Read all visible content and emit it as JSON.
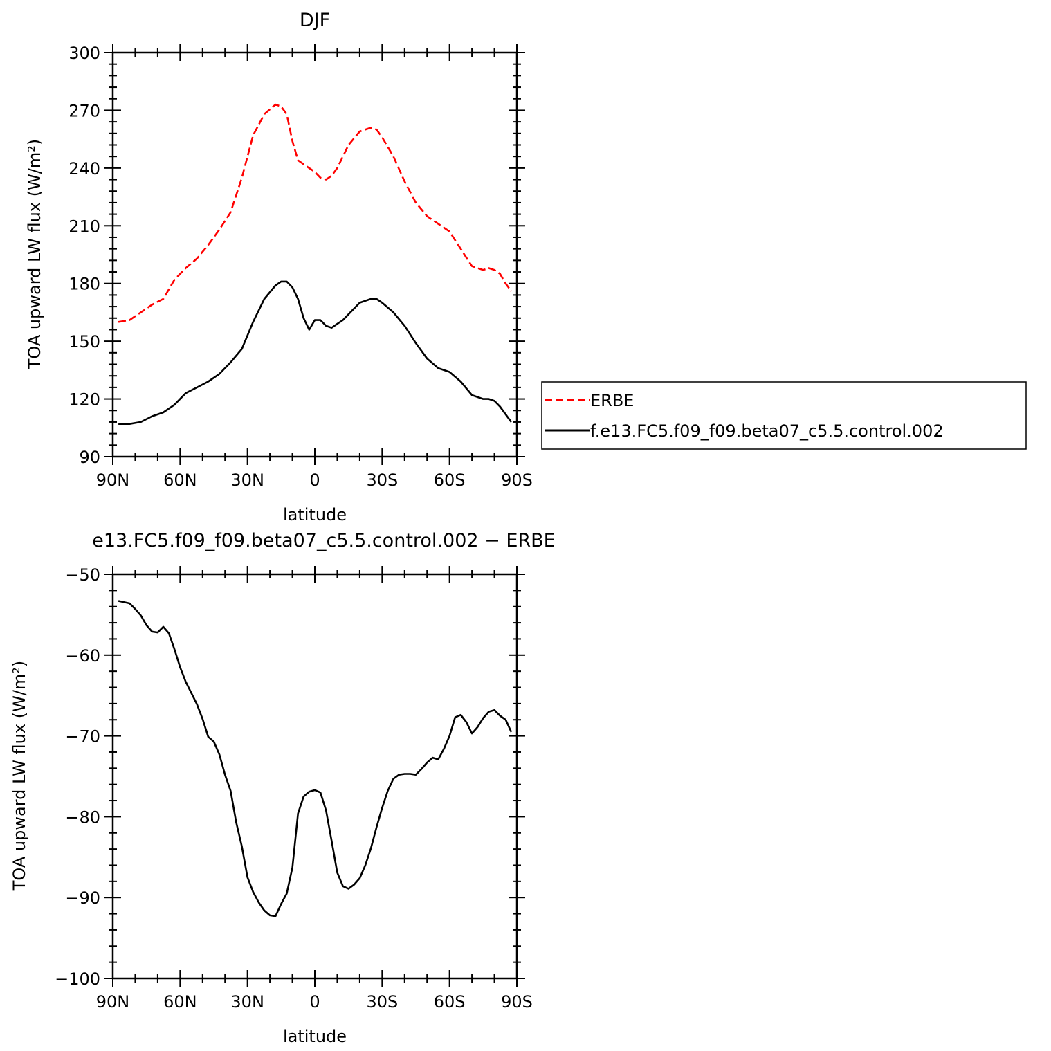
{
  "chart_data": [
    {
      "type": "line",
      "title": "DJF",
      "xlabel": "latitude",
      "ylabel": "TOA upward LW flux (W/m²)",
      "xlim": [
        90,
        -90
      ],
      "ylim": [
        90,
        300
      ],
      "x_ticks": [
        {
          "value": 90,
          "label": "90N"
        },
        {
          "value": 60,
          "label": "60N"
        },
        {
          "value": 30,
          "label": "30N"
        },
        {
          "value": 0,
          "label": "0"
        },
        {
          "value": -30,
          "label": "30S"
        },
        {
          "value": -60,
          "label": "60S"
        },
        {
          "value": -90,
          "label": "90S"
        }
      ],
      "y_ticks": [
        {
          "value": 300,
          "label": "300"
        },
        {
          "value": 270,
          "label": "270"
        },
        {
          "value": 240,
          "label": "240"
        },
        {
          "value": 210,
          "label": "210"
        },
        {
          "value": 180,
          "label": "180"
        },
        {
          "value": 150,
          "label": "150"
        },
        {
          "value": 120,
          "label": "120"
        },
        {
          "value": 90,
          "label": "90"
        }
      ],
      "legend": {
        "placement": "right",
        "entries": [
          "ERBE",
          "f.e13.FC5.f09_f09.beta07_c5.5.control.002"
        ]
      },
      "series": [
        {
          "name": "ERBE",
          "color": "#ff0000",
          "style": "dashed",
          "x": [
            87.5,
            82.5,
            77.5,
            72.5,
            67.5,
            62.5,
            57.5,
            52.5,
            47.5,
            42.5,
            37.5,
            32.5,
            27.5,
            22.5,
            17.5,
            15,
            12.5,
            10,
            7.5,
            5,
            2.5,
            0,
            -2.5,
            -5,
            -7.5,
            -10,
            -12.5,
            -15,
            -20,
            -25,
            -27.5,
            -30,
            -35,
            -40,
            -45,
            -50,
            -55,
            -60,
            -65,
            -70,
            -75,
            -77.5,
            -80,
            -82.5,
            -85,
            -87.5
          ],
          "y": [
            160,
            161,
            165,
            169,
            172,
            182,
            188,
            193,
            200,
            208,
            217,
            235,
            257,
            268,
            273,
            272,
            268,
            254,
            244,
            242,
            240,
            238,
            235,
            234,
            236,
            240,
            246,
            252,
            259,
            261,
            260,
            256,
            246,
            233,
            222,
            215,
            211,
            207,
            198,
            189,
            187,
            188,
            187,
            185,
            180,
            176
          ],
          "values_are_estimates": true
        },
        {
          "name": "f.e13.FC5.f09_f09.beta07_c5.5.control.002",
          "color": "#000000",
          "style": "solid",
          "x": [
            87.5,
            82.5,
            77.5,
            72.5,
            67.5,
            62.5,
            57.5,
            52.5,
            47.5,
            42.5,
            37.5,
            32.5,
            27.5,
            22.5,
            17.5,
            15,
            12.5,
            10,
            7.5,
            5,
            2.5,
            0,
            -2.5,
            -5,
            -7.5,
            -10,
            -12.5,
            -15,
            -20,
            -25,
            -27.5,
            -30,
            -35,
            -40,
            -45,
            -50,
            -55,
            -60,
            -65,
            -70,
            -75,
            -77.5,
            -80,
            -82.5,
            -85,
            -87.5
          ],
          "y": [
            107,
            107,
            108,
            111,
            113,
            117,
            123,
            126,
            129,
            133,
            139,
            146,
            160,
            172,
            179,
            181,
            181,
            178,
            172,
            162,
            156,
            161,
            161,
            158,
            157,
            159,
            161,
            164,
            170,
            172,
            172,
            170,
            165,
            158,
            149,
            141,
            136,
            134,
            129,
            122,
            120,
            120,
            119,
            116,
            112,
            108
          ],
          "values_are_estimates": true
        }
      ]
    },
    {
      "type": "line",
      "title": "e13.FC5.f09_f09.beta07_c5.5.control.002 − ERBE",
      "xlabel": "latitude",
      "ylabel": "TOA upward LW flux (W/m²)",
      "xlim": [
        90,
        -90
      ],
      "ylim": [
        -100,
        -50
      ],
      "x_ticks": [
        {
          "value": 90,
          "label": "90N"
        },
        {
          "value": 60,
          "label": "60N"
        },
        {
          "value": 30,
          "label": "30N"
        },
        {
          "value": 0,
          "label": "0"
        },
        {
          "value": -30,
          "label": "30S"
        },
        {
          "value": -60,
          "label": "60S"
        },
        {
          "value": -90,
          "label": "90S"
        }
      ],
      "y_ticks": [
        {
          "value": -50,
          "label": "−50"
        },
        {
          "value": -60,
          "label": "−60"
        },
        {
          "value": -70,
          "label": "−70"
        },
        {
          "value": -80,
          "label": "−80"
        },
        {
          "value": -90,
          "label": "−90"
        },
        {
          "value": -100,
          "label": "−100"
        }
      ],
      "series": [
        {
          "color": "#000000",
          "style": "solid",
          "x": [
            87.5,
            82.5,
            80,
            77.5,
            75,
            72.5,
            70,
            67.5,
            65,
            62.5,
            60,
            57.5,
            55,
            52.5,
            50,
            47.5,
            45,
            42.5,
            40,
            37.5,
            35,
            32.5,
            30,
            27.5,
            25,
            22.5,
            20,
            17.5,
            15,
            12.5,
            10,
            7.5,
            5,
            2.5,
            0,
            -2.5,
            -5,
            -7.5,
            -10,
            -12.5,
            -15,
            -17.5,
            -20,
            -22.5,
            -25,
            -27.5,
            -30,
            -32.5,
            -35,
            -37.5,
            -40,
            -42.5,
            -45,
            -47.5,
            -50,
            -52.5,
            -55,
            -57.5,
            -60,
            -62.5,
            -65,
            -67.5,
            -70,
            -72.5,
            -75,
            -77.5,
            -80,
            -82.5,
            -85,
            -87.5
          ],
          "y": [
            -53.3,
            -53.6,
            -54.3,
            -55.1,
            -56.3,
            -57.1,
            -57.2,
            -56.5,
            -57.3,
            -59.3,
            -61.5,
            -63.3,
            -64.7,
            -66.1,
            -67.9,
            -70.1,
            -70.7,
            -72.3,
            -74.8,
            -76.8,
            -80.7,
            -83.7,
            -87.5,
            -89.3,
            -90.6,
            -91.6,
            -92.2,
            -92.3,
            -90.8,
            -89.5,
            -86.3,
            -79.6,
            -77.5,
            -76.9,
            -76.7,
            -77.0,
            -79.2,
            -83.0,
            -86.9,
            -88.6,
            -88.9,
            -88.4,
            -87.6,
            -86.0,
            -83.9,
            -81.3,
            -78.9,
            -76.8,
            -75.3,
            -74.8,
            -74.7,
            -74.7,
            -74.8,
            -74.1,
            -73.3,
            -72.7,
            -72.9,
            -71.6,
            -70.0,
            -67.7,
            -67.4,
            -68.3,
            -69.7,
            -68.9,
            -67.8,
            -67.0,
            -66.8,
            -67.5,
            -68.0,
            -69.5
          ],
          "values_are_estimates": true
        }
      ]
    }
  ]
}
